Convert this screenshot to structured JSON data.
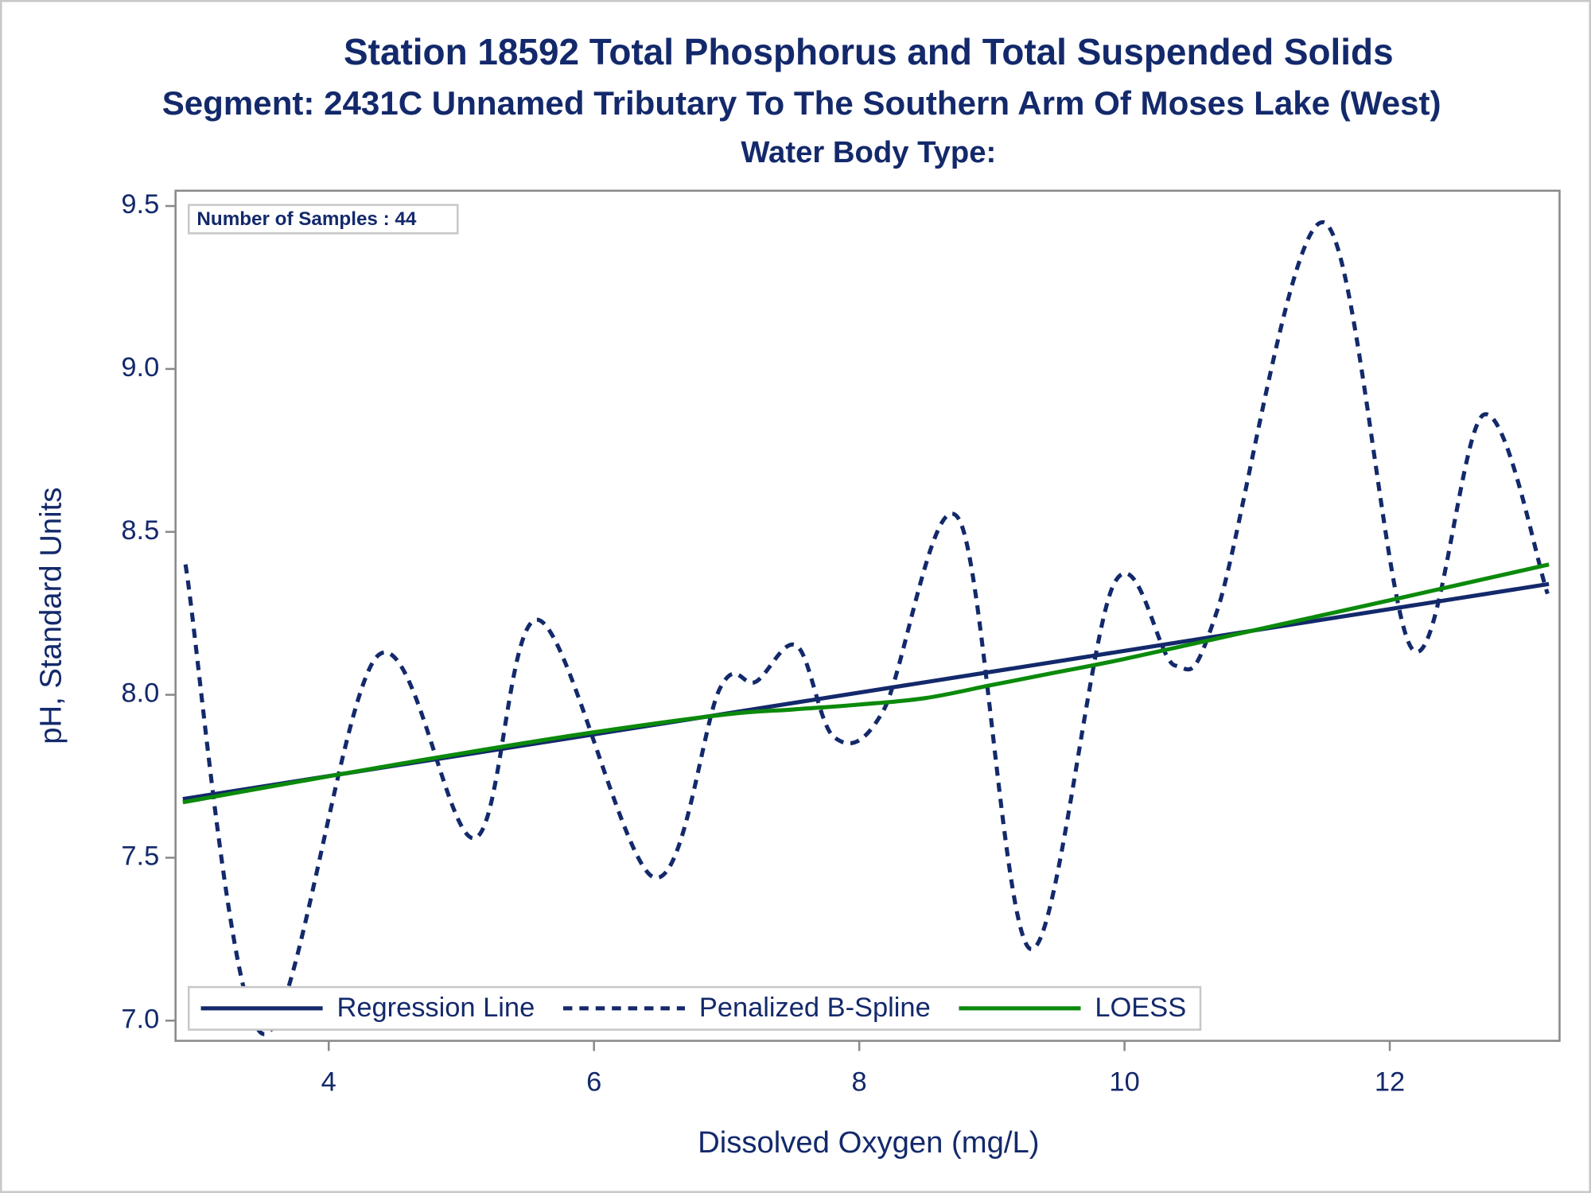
{
  "chart_data": {
    "type": "line",
    "title": "Station 18592  Total Phosphorus and Total Suspended Solids",
    "subtitle": "Segment: 2431C  Unnamed Tributary To The Southern Arm Of Moses Lake (West)",
    "subtitle2": "Water Body Type:",
    "annotation": "Number of Samples : 44",
    "x_label": "Dissolved Oxygen (mg/L)",
    "y_label": "pH, Standard Units",
    "xlim": [
      2.845,
      13.28
    ],
    "ylim": [
      6.938,
      9.547
    ],
    "xticks": [
      4,
      6,
      8,
      10,
      12
    ],
    "yticks": [
      {
        "value": 7.0,
        "label": "7.0"
      },
      {
        "value": 7.5,
        "label": "7.5"
      },
      {
        "value": 8.0,
        "label": "8.0"
      },
      {
        "value": 8.5,
        "label": "8.5"
      },
      {
        "value": 9.0,
        "label": "9.0"
      },
      {
        "value": 9.5,
        "label": "9.5"
      }
    ],
    "legend": "bottom-left",
    "series": [
      {
        "name": "Regression Line",
        "color": "#13296b",
        "dash": "solid",
        "x": [
          2.9,
          13.2
        ],
        "values": [
          7.68,
          8.34
        ]
      },
      {
        "name": "Penalized B-Spline",
        "color": "#13296b",
        "dash": "dashed",
        "x": [
          2.92,
          3.5,
          4.37,
          5.1,
          5.58,
          6.45,
          6.95,
          7.22,
          7.53,
          7.81,
          8.18,
          8.75,
          9.29,
          9.92,
          10.38,
          10.7,
          11.5,
          12.17,
          12.71,
          13.19
        ],
        "values": [
          8.4,
          6.96,
          8.12,
          7.56,
          8.23,
          7.44,
          8.02,
          8.04,
          8.15,
          7.87,
          7.95,
          8.54,
          7.22,
          8.34,
          8.09,
          8.26,
          9.45,
          8.14,
          8.86,
          8.31
        ]
      },
      {
        "name": "LOESS",
        "color": "#0b8a0b",
        "dash": "solid",
        "x": [
          2.9,
          4,
          5,
          6,
          7,
          7.5,
          8,
          8.5,
          9,
          9.5,
          10,
          11,
          12,
          13.2
        ],
        "values": [
          7.67,
          7.75,
          7.82,
          7.885,
          7.94,
          7.955,
          7.97,
          7.99,
          8.03,
          8.07,
          8.11,
          8.2,
          8.29,
          8.4
        ]
      }
    ]
  }
}
